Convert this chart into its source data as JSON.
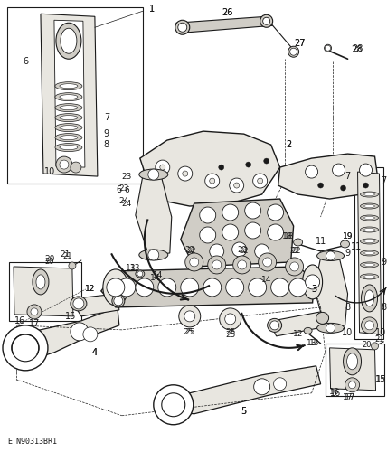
{
  "bg_color": "#ffffff",
  "line_color": "#1a1a1a",
  "fill_light": "#e8e6e0",
  "fill_mid": "#d0cdc6",
  "fill_dark": "#b8b5ae",
  "title_code": "ETN90313BR1",
  "fig_width": 4.28,
  "fig_height": 5.0,
  "dpi": 100
}
